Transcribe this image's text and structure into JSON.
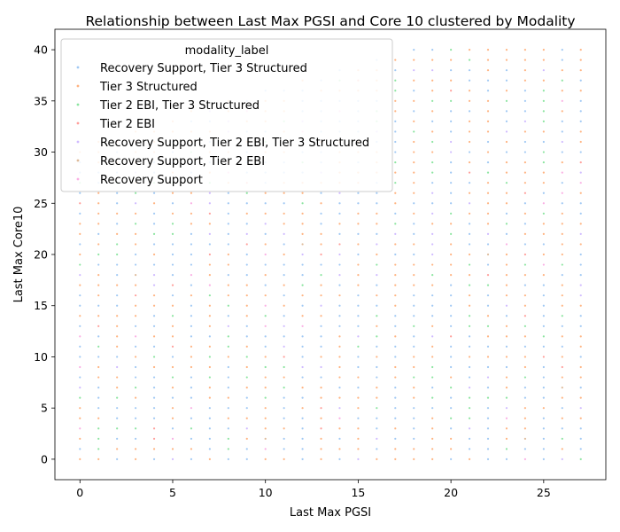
{
  "chart_data": {
    "type": "scatter",
    "title": "Relationship between Last Max PGSI and Core 10 clustered by Modality",
    "xlabel": "Last Max PGSI",
    "ylabel": "Last Max Core10",
    "xlim": [
      -1.35,
      28.35
    ],
    "ylim": [
      -2,
      42
    ],
    "xticks": [
      0,
      5,
      10,
      15,
      20,
      25
    ],
    "yticks": [
      0,
      5,
      10,
      15,
      20,
      25,
      30,
      35,
      40
    ],
    "grid": false,
    "legend": {
      "title": "modality_label",
      "placement": "upper-left"
    },
    "series": [
      {
        "name": "Recovery Support, Tier 3 Structured",
        "color": "#a1c9f4"
      },
      {
        "name": "Tier 3 Structured",
        "color": "#ffb482"
      },
      {
        "name": "Tier 2 EBI, Tier 3 Structured",
        "color": "#8de5a1"
      },
      {
        "name": "Tier 2 EBI",
        "color": "#ff9f9b"
      },
      {
        "name": "Recovery Support, Tier 2 EBI, Tier 3 Structured",
        "color": "#d0bbff"
      },
      {
        "name": "Recovery Support, Tier 2 EBI",
        "color": "#debb9b"
      },
      {
        "name": "Recovery Support",
        "color": "#fab0e4"
      }
    ],
    "points": {
      "x_values": "integers 0-27",
      "y_values": "integers 0-40",
      "upper_boundary": [
        {
          "x": 0,
          "y_max": 30
        },
        {
          "x": 5,
          "y_max": 33
        },
        {
          "x": 10,
          "y_max": 36
        },
        {
          "x": 15,
          "y_max": 38
        },
        {
          "x": 17,
          "y_max": 39
        },
        {
          "x": 18,
          "y_max": 40
        },
        {
          "x": 27,
          "y_max": 40
        }
      ]
    }
  }
}
